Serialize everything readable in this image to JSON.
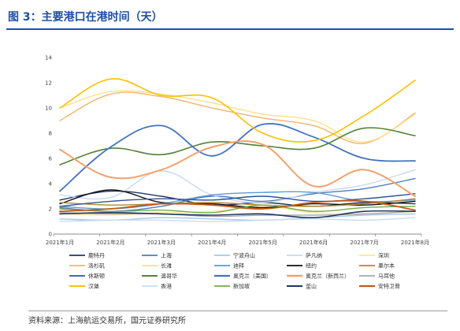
{
  "title": "图 3：主要港口在港时间（天）",
  "source": "资料来源：上海航运交易所，国元证券研究所",
  "chart_data": {
    "type": "line",
    "x": [
      "2021年1月",
      "2021年2月",
      "2021年3月",
      "2021年4月",
      "2021年5月",
      "2021年6月",
      "2021年7月",
      "2021年8月"
    ],
    "ylim": [
      0,
      14
    ],
    "yticks": [
      "0",
      "2",
      "4",
      "6",
      "8",
      "10",
      "12",
      "14"
    ],
    "legend_position": "bottom",
    "grid": false,
    "series": [
      {
        "name": "鹿特丹",
        "color": "#1f3864",
        "width": 1.4,
        "values": [
          2.7,
          3.4,
          3.0,
          2.3,
          2.5,
          2.2,
          2.5,
          2.4
        ]
      },
      {
        "name": "上海",
        "color": "#4a7ebb",
        "width": 1.4,
        "values": [
          2.1,
          1.8,
          2.2,
          3.0,
          2.6,
          3.2,
          3.6,
          4.4
        ]
      },
      {
        "name": "宁波舟山",
        "color": "#a9c4e8",
        "width": 1.4,
        "values": [
          1.2,
          1.1,
          1.3,
          1.2,
          1.1,
          1.3,
          1.5,
          1.6
        ]
      },
      {
        "name": "萨凡纳",
        "color": "#c9d9f0",
        "width": 1.4,
        "values": [
          3.1,
          2.9,
          5.0,
          3.1,
          2.5,
          3.3,
          3.9,
          5.1
        ]
      },
      {
        "name": "深圳",
        "color": "#ffe699",
        "width": 1.4,
        "values": [
          1.6,
          1.5,
          1.7,
          1.8,
          2.2,
          1.7,
          1.6,
          1.8
        ]
      },
      {
        "name": "洛杉矶",
        "color": "#f5b26b",
        "width": 1.4,
        "values": [
          9.0,
          11.1,
          10.9,
          10.0,
          9.2,
          8.6,
          7.2,
          9.6
        ]
      },
      {
        "name": "长滩",
        "color": "#ffe08a",
        "width": 1.4,
        "values": [
          10.0,
          11.3,
          11.1,
          10.4,
          9.5,
          9.0,
          7.3,
          9.5
        ]
      },
      {
        "name": "迪拜",
        "color": "#5b9bd5",
        "width": 1.4,
        "values": [
          2.2,
          2.0,
          2.4,
          3.1,
          3.3,
          3.3,
          2.6,
          2.7
        ]
      },
      {
        "name": "纽约",
        "color": "#111111",
        "width": 1.4,
        "values": [
          2.4,
          3.5,
          2.5,
          2.4,
          2.1,
          2.4,
          2.3,
          2.6
        ]
      },
      {
        "name": "墨尔本",
        "color": "#b08a2e",
        "width": 1.4,
        "values": [
          2.5,
          2.3,
          2.4,
          2.5,
          2.3,
          2.2,
          2.4,
          2.8
        ]
      },
      {
        "name": "休斯顿",
        "color": "#2f5597",
        "width": 1.4,
        "values": [
          2.2,
          2.6,
          2.8,
          2.7,
          3.0,
          2.6,
          2.8,
          3.2
        ]
      },
      {
        "name": "温哥华",
        "color": "#548235",
        "width": 1.6,
        "values": [
          5.5,
          6.8,
          6.3,
          7.3,
          7.0,
          6.8,
          8.4,
          7.8
        ]
      },
      {
        "name": "奥克兰（美国）",
        "color": "#4472c4",
        "width": 1.8,
        "values": [
          3.4,
          6.9,
          8.6,
          6.2,
          8.7,
          7.7,
          6.0,
          5.8
        ]
      },
      {
        "name": "奥克兰（新西兰）",
        "color": "#f4a16a",
        "width": 2.0,
        "values": [
          6.7,
          4.5,
          5.1,
          6.9,
          7.1,
          3.8,
          5.1,
          3.0
        ]
      },
      {
        "name": "马耳他",
        "color": "#a6a6a6",
        "width": 1.4,
        "values": [
          1.7,
          1.6,
          1.6,
          1.4,
          1.5,
          1.5,
          1.6,
          1.8
        ]
      },
      {
        "name": "汉堡",
        "color": "#ffc000",
        "width": 1.6,
        "values": [
          10.0,
          12.3,
          11.0,
          10.8,
          8.0,
          7.4,
          9.4,
          12.2
        ]
      },
      {
        "name": "香港",
        "color": "#c5ddf0",
        "width": 1.4,
        "values": [
          1.0,
          1.1,
          1.1,
          1.0,
          1.1,
          1.2,
          1.1,
          1.3
        ]
      },
      {
        "name": "新加坡",
        "color": "#70ad47",
        "width": 1.4,
        "values": [
          2.0,
          1.8,
          1.9,
          1.7,
          2.3,
          1.8,
          2.1,
          2.2
        ]
      },
      {
        "name": "釜山",
        "color": "#203864",
        "width": 1.6,
        "values": [
          1.6,
          1.7,
          1.6,
          1.5,
          1.6,
          1.3,
          1.8,
          1.8
        ]
      },
      {
        "name": "安特卫普",
        "color": "#c55a11",
        "width": 1.8,
        "values": [
          1.8,
          2.0,
          2.4,
          2.3,
          2.0,
          2.5,
          2.6,
          1.9
        ]
      }
    ]
  }
}
